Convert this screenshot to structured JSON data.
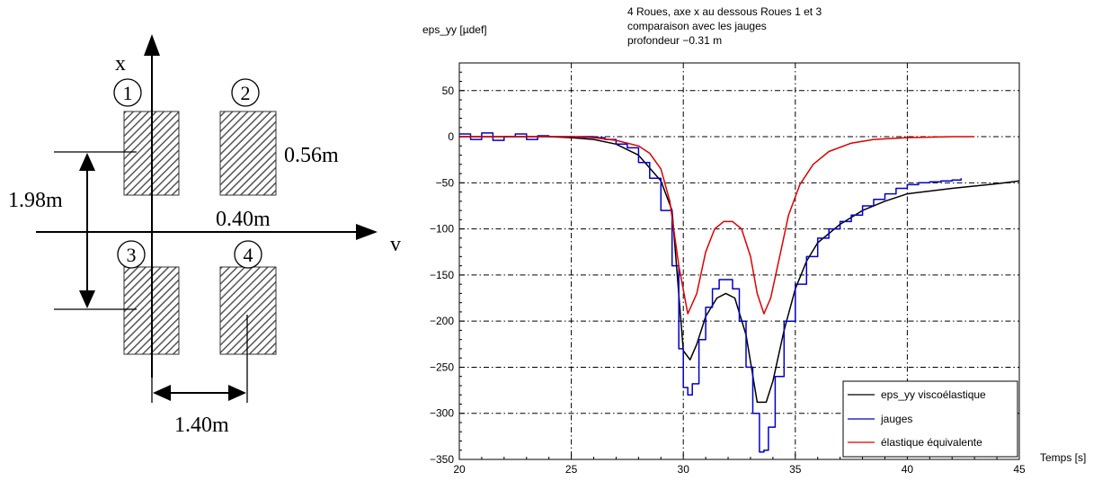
{
  "diagram": {
    "axis_x_label": "x",
    "axis_v_label": "v",
    "wheel_1": "1",
    "wheel_2": "2",
    "wheel_3": "3",
    "wheel_4": "4",
    "dim_wheel_length": "0.56m",
    "dim_axle_spacing": "1.98m",
    "dim_wheel_gap": "0.40m",
    "dim_wheel_track": "1.40m"
  },
  "chart_data": {
    "type": "line",
    "title_lines": [
      "4 Roues, axe x au dessous Roues 1 et 3",
      "comparaison avec les jauges",
      "profondeur −0.31 m"
    ],
    "ylabel": "eps_yy [µdef]",
    "xlabel": "Temps [s]",
    "xlim": [
      20,
      45
    ],
    "ylim": [
      -350,
      80
    ],
    "xticks": [
      20,
      25,
      30,
      35,
      40,
      45
    ],
    "yticks": [
      50,
      0,
      -50,
      -100,
      -150,
      -200,
      -250,
      -300,
      -350
    ],
    "grid": true,
    "legend_position": "bottom-right",
    "series": [
      {
        "name": "eps_yy viscoélastique",
        "color": "#000000",
        "points": [
          [
            20,
            0
          ],
          [
            24,
            0
          ],
          [
            25,
            -1
          ],
          [
            26,
            -3
          ],
          [
            27,
            -8
          ],
          [
            28,
            -20
          ],
          [
            29,
            -48
          ],
          [
            29.5,
            -80
          ],
          [
            30,
            -232
          ],
          [
            30.3,
            -242
          ],
          [
            30.6,
            -225
          ],
          [
            31,
            -195
          ],
          [
            31.5,
            -175
          ],
          [
            31.9,
            -170
          ],
          [
            32.3,
            -175
          ],
          [
            32.8,
            -215
          ],
          [
            33.3,
            -288
          ],
          [
            33.7,
            -288
          ],
          [
            34,
            -265
          ],
          [
            34.5,
            -210
          ],
          [
            35,
            -165
          ],
          [
            35.5,
            -135
          ],
          [
            36,
            -115
          ],
          [
            37,
            -95
          ],
          [
            38,
            -80
          ],
          [
            39,
            -70
          ],
          [
            40,
            -62
          ],
          [
            42,
            -56
          ],
          [
            44,
            -51
          ],
          [
            45,
            -48
          ]
        ]
      },
      {
        "name": "jauges",
        "color": "#0000cc",
        "points": [
          [
            20,
            3
          ],
          [
            20.5,
            -3
          ],
          [
            21,
            4
          ],
          [
            21.5,
            -4
          ],
          [
            22,
            0
          ],
          [
            22.5,
            3
          ],
          [
            23,
            -3
          ],
          [
            23.5,
            1
          ],
          [
            24,
            0
          ],
          [
            25,
            0
          ],
          [
            26,
            -1
          ],
          [
            26.5,
            -3
          ],
          [
            27,
            -8
          ],
          [
            27.5,
            -12
          ],
          [
            28,
            -28
          ],
          [
            28.5,
            -45
          ],
          [
            29,
            -80
          ],
          [
            29.5,
            -140
          ],
          [
            29.8,
            -230
          ],
          [
            30,
            -272
          ],
          [
            30.2,
            -280
          ],
          [
            30.4,
            -268
          ],
          [
            30.7,
            -220
          ],
          [
            31,
            -185
          ],
          [
            31.3,
            -165
          ],
          [
            31.6,
            -155
          ],
          [
            31.9,
            -155
          ],
          [
            32.2,
            -165
          ],
          [
            32.5,
            -200
          ],
          [
            32.8,
            -250
          ],
          [
            33.1,
            -300
          ],
          [
            33.4,
            -342
          ],
          [
            33.6,
            -340
          ],
          [
            33.8,
            -315
          ],
          [
            34.1,
            -260
          ],
          [
            34.5,
            -200
          ],
          [
            35,
            -160
          ],
          [
            35.5,
            -130
          ],
          [
            36,
            -110
          ],
          [
            36.5,
            -100
          ],
          [
            37,
            -92
          ],
          [
            37.5,
            -85
          ],
          [
            38,
            -75
          ],
          [
            38.5,
            -68
          ],
          [
            39,
            -62
          ],
          [
            39.5,
            -56
          ],
          [
            40,
            -52
          ],
          [
            40.5,
            -50
          ],
          [
            41,
            -49
          ],
          [
            41.5,
            -48
          ],
          [
            42,
            -47
          ],
          [
            42.4,
            -45
          ]
        ]
      },
      {
        "name": "élastique équivalente",
        "color": "#dd0000",
        "points": [
          [
            20,
            0
          ],
          [
            25,
            0
          ],
          [
            26,
            -1
          ],
          [
            27,
            -4
          ],
          [
            28,
            -10
          ],
          [
            28.5,
            -18
          ],
          [
            29,
            -35
          ],
          [
            29.4,
            -70
          ],
          [
            29.8,
            -140
          ],
          [
            30.2,
            -192
          ],
          [
            30.6,
            -170
          ],
          [
            31,
            -125
          ],
          [
            31.4,
            -100
          ],
          [
            31.8,
            -92
          ],
          [
            32.2,
            -92
          ],
          [
            32.6,
            -100
          ],
          [
            33,
            -130
          ],
          [
            33.3,
            -170
          ],
          [
            33.6,
            -192
          ],
          [
            33.9,
            -175
          ],
          [
            34.3,
            -130
          ],
          [
            34.7,
            -85
          ],
          [
            35.2,
            -52
          ],
          [
            35.8,
            -30
          ],
          [
            36.5,
            -16
          ],
          [
            37.5,
            -7
          ],
          [
            38.5,
            -3
          ],
          [
            40,
            -1
          ],
          [
            42,
            0
          ],
          [
            43,
            0
          ]
        ]
      }
    ]
  }
}
